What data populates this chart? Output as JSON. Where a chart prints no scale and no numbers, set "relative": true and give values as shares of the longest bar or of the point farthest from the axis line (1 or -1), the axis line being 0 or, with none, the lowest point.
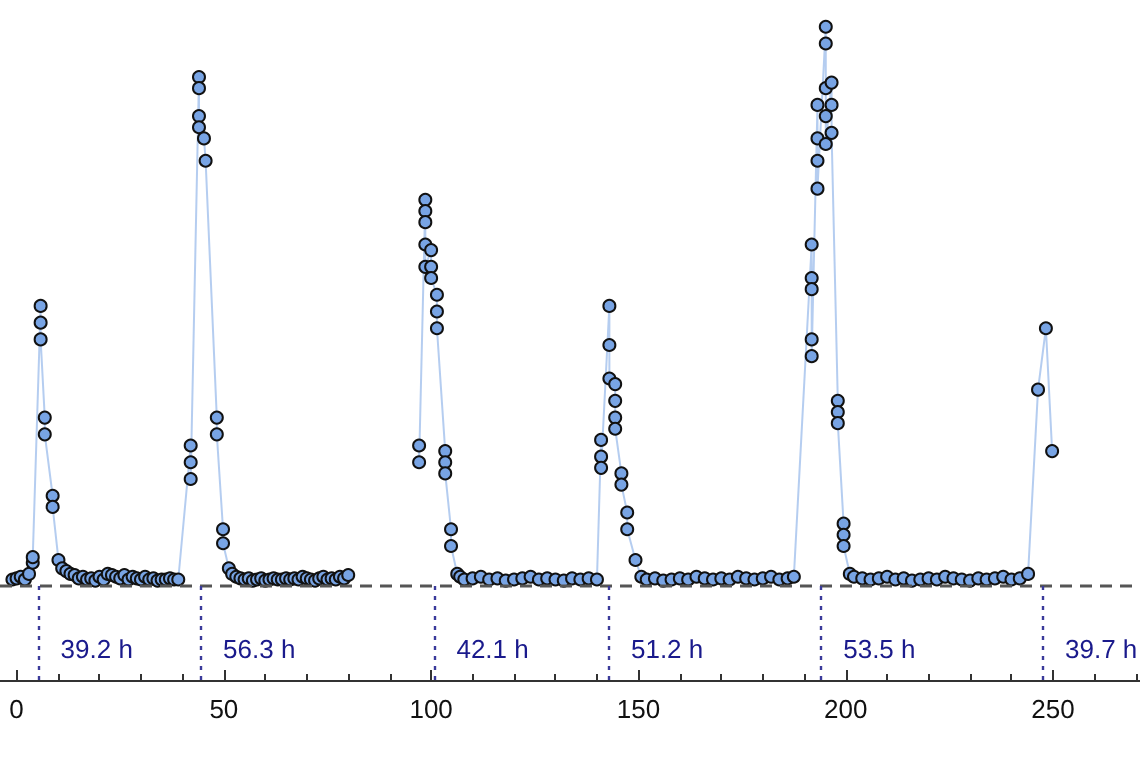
{
  "chart_data": {
    "type": "line",
    "relative": true,
    "marker": "circle",
    "xlim": [
      -4,
      271
    ],
    "xticks": [
      0,
      50,
      100,
      150,
      200,
      250
    ],
    "series": [
      {
        "color": "#78a4e4",
        "x": [
          -1,
          0,
          1,
          2,
          3,
          3.9,
          3.9,
          5.8,
          5.8,
          5.8,
          6.8,
          6.8,
          8.7,
          8.7,
          10.1,
          11,
          12,
          13,
          14,
          15,
          16,
          17,
          18,
          19,
          20,
          21,
          22,
          23,
          24,
          25,
          26,
          27,
          28,
          29,
          30,
          31,
          32,
          33,
          34,
          35,
          36,
          37,
          38,
          39,
          42,
          42,
          42,
          44,
          44,
          44,
          44,
          45.2,
          45.6,
          48.3,
          48.3,
          49.8,
          49.8,
          51.2,
          52,
          53,
          54,
          55,
          56,
          57,
          58,
          59,
          60,
          61,
          62,
          63,
          64,
          65,
          66,
          67,
          68,
          69,
          70,
          71,
          72,
          73,
          74,
          75,
          76,
          77,
          78,
          79,
          80,
          88,
          97.1,
          97.1,
          98.6,
          98.6,
          98.6,
          98.6,
          98.6,
          100,
          100,
          100,
          101.4,
          101.4,
          101.4,
          103.4,
          103.4,
          103.4,
          104.8,
          104.8,
          106.3,
          107,
          108,
          110,
          112,
          114,
          116,
          118,
          120,
          122,
          124,
          126,
          128,
          130,
          132,
          134,
          136,
          138,
          140,
          141,
          141,
          141,
          143,
          143,
          143,
          144.4,
          144.4,
          144.4,
          144.4,
          145.9,
          145.9,
          147.3,
          147.3,
          149.3,
          150.7,
          152,
          154,
          156,
          158,
          160,
          162,
          164,
          166,
          168,
          170,
          172,
          174,
          176,
          178,
          180,
          182,
          184,
          186,
          187.5,
          191.8,
          191.8,
          191.8,
          191.8,
          191.8,
          193.2,
          193.2,
          193.2,
          193.2,
          195.2,
          195.2,
          195.2,
          195.2,
          195.2,
          196.6,
          196.6,
          196.6,
          198.1,
          198.1,
          198.1,
          199.5,
          199.5,
          199.5,
          201,
          202,
          204,
          206,
          208,
          210,
          212,
          214,
          216,
          218,
          220,
          222,
          224,
          226,
          228,
          230,
          232,
          234,
          236,
          238,
          240,
          242,
          244,
          246.4,
          248.3,
          249.8
        ],
        "values": [
          0.01,
          0.012,
          0.015,
          0.01,
          0.02,
          0.04,
          0.05,
          0.5,
          0.47,
          0.44,
          0.3,
          0.27,
          0.16,
          0.14,
          0.045,
          0.03,
          0.025,
          0.02,
          0.018,
          0.012,
          0.015,
          0.01,
          0.012,
          0.008,
          0.015,
          0.01,
          0.02,
          0.018,
          0.015,
          0.012,
          0.018,
          0.01,
          0.015,
          0.012,
          0.01,
          0.015,
          0.01,
          0.012,
          0.008,
          0.01,
          0.01,
          0.012,
          0.01,
          0.01,
          0.25,
          0.22,
          0.19,
          0.91,
          0.89,
          0.84,
          0.82,
          0.8,
          0.76,
          0.3,
          0.27,
          0.1,
          0.075,
          0.03,
          0.02,
          0.015,
          0.012,
          0.01,
          0.012,
          0.008,
          0.01,
          0.012,
          0.008,
          0.01,
          0.012,
          0.01,
          0.01,
          0.012,
          0.01,
          0.012,
          0.01,
          0.015,
          0.012,
          0.01,
          0.008,
          0.012,
          0.015,
          0.01,
          0.012,
          0.01,
          0.015,
          0.012,
          0.018,
          null,
          0.25,
          0.22,
          0.69,
          0.67,
          0.65,
          0.61,
          0.57,
          0.6,
          0.57,
          0.55,
          0.52,
          0.49,
          0.46,
          0.24,
          0.22,
          0.2,
          0.1,
          0.07,
          0.02,
          0.015,
          0.01,
          0.012,
          0.015,
          0.01,
          0.012,
          0.008,
          0.01,
          0.012,
          0.015,
          0.01,
          0.012,
          0.01,
          0.008,
          0.012,
          0.01,
          0.012,
          0.01,
          0.26,
          0.23,
          0.21,
          0.5,
          0.43,
          0.37,
          0.36,
          0.33,
          0.3,
          0.28,
          0.2,
          0.18,
          0.13,
          0.1,
          0.045,
          0.015,
          0.01,
          0.012,
          0.008,
          0.01,
          0.012,
          0.01,
          0.015,
          0.012,
          0.01,
          0.012,
          0.01,
          0.015,
          0.012,
          0.01,
          0.012,
          0.015,
          0.01,
          0.012,
          0.015,
          0.61,
          0.55,
          0.53,
          0.44,
          0.41,
          0.86,
          0.8,
          0.76,
          0.71,
          1,
          0.97,
          0.89,
          0.84,
          0.79,
          0.9,
          0.86,
          0.81,
          0.33,
          0.31,
          0.29,
          0.11,
          0.09,
          0.07,
          0.02,
          0.015,
          0.012,
          0.01,
          0.012,
          0.015,
          0.01,
          0.012,
          0.008,
          0.01,
          0.012,
          0.01,
          0.015,
          0.012,
          0.01,
          0.008,
          0.012,
          0.01,
          0.012,
          0.015,
          0.01,
          0.012,
          0.02,
          0.35,
          0.46,
          0.24
        ]
      }
    ],
    "ref_lines": [
      {
        "axis": "y",
        "value": 0,
        "color": "#555555",
        "line_style": "dashed"
      },
      {
        "axis": "x",
        "value": 5.3,
        "label": "39.2 h",
        "color": "#3a3a9a",
        "line_style": "dotted"
      },
      {
        "axis": "x",
        "value": 44.5,
        "label": "56.3 h",
        "color": "#3a3a9a",
        "line_style": "dotted"
      },
      {
        "axis": "x",
        "value": 100.8,
        "label": "42.1 h",
        "color": "#3a3a9a",
        "line_style": "dotted"
      },
      {
        "axis": "x",
        "value": 142.9,
        "label": "51.2 h",
        "color": "#3a3a9a",
        "line_style": "dotted"
      },
      {
        "axis": "x",
        "value": 194.1,
        "label": "53.5 h",
        "color": "#3a3a9a",
        "line_style": "dotted"
      },
      {
        "axis": "x",
        "value": 247.6,
        "label": "39.7 h",
        "color": "#3a3a9a",
        "line_style": "dotted"
      }
    ]
  }
}
